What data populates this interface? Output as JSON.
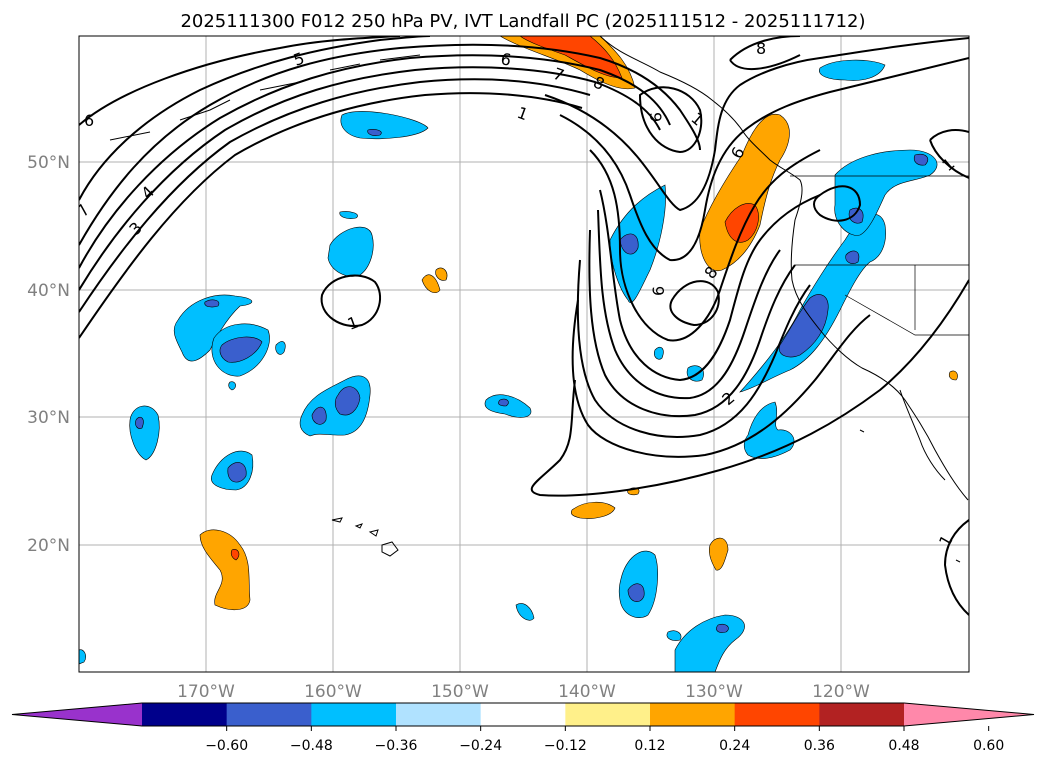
{
  "title": "2025111300 F012 250 hPa PV, IVT Landfall PC (2025111512 - 2025111712)",
  "lat_labels": [
    "50°N",
    "40°N",
    "30°N",
    "20°N"
  ],
  "lon_labels": [
    "170°W",
    "160°W",
    "150°W",
    "140°W",
    "130°W",
    "120°W"
  ],
  "colorbar": {
    "ticks": [
      "−0.60",
      "−0.48",
      "−0.36",
      "−0.24",
      "−0.12",
      "0.12",
      "0.24",
      "0.36",
      "0.48",
      "0.60"
    ],
    "colors": [
      "#9932cc",
      "#00008b",
      "#3a5fcd",
      "#00bfff",
      "#b0e2ff",
      "#ffffff",
      "#fff08a",
      "#ffa500",
      "#ff4500",
      "#b22222",
      "#ff88aa"
    ]
  },
  "pv_contour_labels": [
    "5",
    "6",
    "4",
    "3",
    "7",
    "6",
    "7",
    "8",
    "9",
    "1",
    "8",
    "6",
    "8",
    "1",
    "6",
    "2",
    "1",
    "1",
    "1"
  ],
  "map": {
    "lat_range": [
      10,
      60
    ],
    "lon_range": [
      -180,
      -110
    ],
    "gridlines": true
  }
}
